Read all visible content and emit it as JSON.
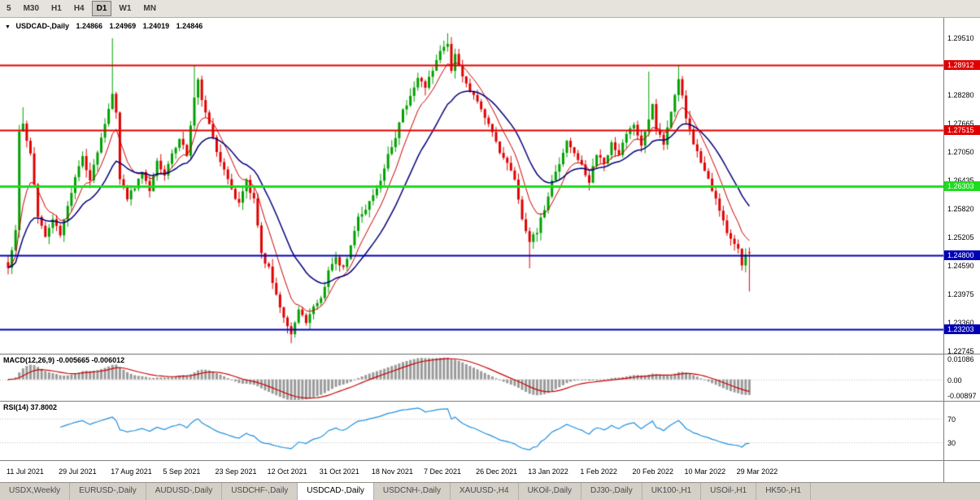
{
  "toolbar": {
    "timeframe_buttons": [
      {
        "label": "5",
        "active": false
      },
      {
        "label": "M30",
        "active": false
      },
      {
        "label": "H1",
        "active": false
      },
      {
        "label": "H4",
        "active": false
      },
      {
        "label": "D1",
        "active": true
      },
      {
        "label": "W1",
        "active": false
      },
      {
        "label": "MN",
        "active": false
      }
    ]
  },
  "icons": {
    "collapse": "▼"
  },
  "chart": {
    "symbol_title": "USDCAD-,Daily",
    "ohlc": {
      "open": "1.24866",
      "high": "1.24969",
      "low": "1.24019",
      "close": "1.24846"
    },
    "price_axis": {
      "top_price": 1.2951,
      "step": 0.00615,
      "labels": [
        "1.29510",
        "1.28280",
        "1.27665",
        "1.27050",
        "1.26435",
        "1.25820",
        "1.25205",
        "1.24590",
        "1.23975",
        "1.23360",
        "1.22745"
      ]
    },
    "hlines": [
      {
        "price": 1.28912,
        "label": "1.28912",
        "color": "#e00000",
        "width": 2
      },
      {
        "price": 1.27515,
        "label": "1.27515",
        "color": "#e00000",
        "width": 2
      },
      {
        "price": 1.26303,
        "label": "1.26303",
        "color": "#1edc1e",
        "width": 3
      },
      {
        "price": 1.248,
        "label": "1.24800",
        "color": "#0000b4",
        "width": 2
      },
      {
        "price": 1.23203,
        "label": "1.23203",
        "color": "#0000b4",
        "width": 2
      }
    ],
    "date_axis": [
      "11 Jul 2021",
      "29 Jul 2021",
      "17 Aug 2021",
      "5 Sep 2021",
      "23 Sep 2021",
      "12 Oct 2021",
      "31 Oct 2021",
      "18 Nov 2021",
      "7 Dec 2021",
      "26 Dec 2021",
      "13 Jan 2022",
      "1 Feb 2022",
      "20 Feb 2022",
      "10 Mar 2022",
      "29 Mar 2022"
    ]
  },
  "macd": {
    "label": "MACD(12,26,9) -0.005665 -0.006012",
    "max": 0.01086,
    "min": -0.00897,
    "axis_labels": {
      "top": "0.01086",
      "zero": "0.00",
      "bottom": "-0.00897"
    }
  },
  "rsi": {
    "label": "RSI(14) 37.8002",
    "levels": [
      70,
      30
    ],
    "axis_labels": [
      "70",
      "30"
    ]
  },
  "tabs": [
    {
      "label": "USDX,Weekly",
      "active": false
    },
    {
      "label": "EURUSD-,Daily",
      "active": false
    },
    {
      "label": "AUDUSD-,Daily",
      "active": false
    },
    {
      "label": "USDCHF-,Daily",
      "active": false
    },
    {
      "label": "USDCAD-,Daily",
      "active": true
    },
    {
      "label": "USDCNH-,Daily",
      "active": false
    },
    {
      "label": "XAUUSD-,H4",
      "active": false
    },
    {
      "label": "UKOil-,Daily",
      "active": false
    },
    {
      "label": "DJ30-,Daily",
      "active": false
    },
    {
      "label": "UK100-,H1",
      "active": false
    },
    {
      "label": "USOil-,H1",
      "active": false
    },
    {
      "label": "HK50-,H1",
      "active": false
    }
  ],
  "colors": {
    "bull": "#00a000",
    "bear": "#e00000",
    "ma_fast": "#cc0000",
    "ma_slow": "#00007a",
    "macd_hist": "#9a9a9a",
    "macd_signal": "#cc0000",
    "rsi_line": "#2090e0",
    "grid": "#c0c0c0",
    "separator": "#808080"
  },
  "chart_data": {
    "type": "candlestick",
    "symbol": "USDCAD-",
    "timeframe": "Daily",
    "bars": 200,
    "bars_per_date_label": 14,
    "current_ohlc": {
      "open": 1.24866,
      "high": 1.24969,
      "low": 1.24019,
      "close": 1.24846
    },
    "support_resistance": [
      1.28912,
      1.27515,
      1.26303,
      1.248,
      1.23203
    ],
    "close_anchors": [
      [
        0,
        1.2455
      ],
      [
        2,
        1.253
      ],
      [
        3,
        1.2745
      ],
      [
        4,
        1.2762
      ],
      [
        6,
        1.27
      ],
      [
        8,
        1.256
      ],
      [
        10,
        1.252
      ],
      [
        12,
        1.2556
      ],
      [
        14,
        1.2528
      ],
      [
        16,
        1.2588
      ],
      [
        18,
        1.265
      ],
      [
        20,
        1.2692
      ],
      [
        22,
        1.2645
      ],
      [
        24,
        1.2705
      ],
      [
        26,
        1.2762
      ],
      [
        28,
        1.2825
      ],
      [
        29,
        1.279
      ],
      [
        30,
        1.2645
      ],
      [
        32,
        1.2602
      ],
      [
        34,
        1.2628
      ],
      [
        36,
        1.2662
      ],
      [
        38,
        1.2622
      ],
      [
        40,
        1.268
      ],
      [
        42,
        1.2652
      ],
      [
        44,
        1.2702
      ],
      [
        46,
        1.2732
      ],
      [
        48,
        1.2695
      ],
      [
        50,
        1.2825
      ],
      [
        51,
        1.2858
      ],
      [
        52,
        1.2812
      ],
      [
        54,
        1.2762
      ],
      [
        56,
        1.2702
      ],
      [
        58,
        1.2662
      ],
      [
        60,
        1.2622
      ],
      [
        62,
        1.2592
      ],
      [
        64,
        1.264
      ],
      [
        66,
        1.26
      ],
      [
        68,
        1.2482
      ],
      [
        70,
        1.2452
      ],
      [
        72,
        1.2392
      ],
      [
        74,
        1.2342
      ],
      [
        76,
        1.2312
      ],
      [
        78,
        1.236
      ],
      [
        80,
        1.2332
      ],
      [
        82,
        1.2372
      ],
      [
        84,
        1.2392
      ],
      [
        86,
        1.2442
      ],
      [
        88,
        1.2472
      ],
      [
        90,
        1.2452
      ],
      [
        92,
        1.2502
      ],
      [
        94,
        1.2562
      ],
      [
        96,
        1.2582
      ],
      [
        98,
        1.2612
      ],
      [
        100,
        1.2642
      ],
      [
        102,
        1.2702
      ],
      [
        104,
        1.2732
      ],
      [
        106,
        1.2792
      ],
      [
        108,
        1.2822
      ],
      [
        110,
        1.2862
      ],
      [
        112,
        1.2842
      ],
      [
        114,
        1.2882
      ],
      [
        116,
        1.2922
      ],
      [
        118,
        1.2932
      ],
      [
        119,
        1.2882
      ],
      [
        120,
        1.2912
      ],
      [
        122,
        1.2862
      ],
      [
        124,
        1.2832
      ],
      [
        126,
        1.2812
      ],
      [
        128,
        1.2782
      ],
      [
        130,
        1.2742
      ],
      [
        132,
        1.2702
      ],
      [
        134,
        1.2682
      ],
      [
        136,
        1.2642
      ],
      [
        138,
        1.2562
      ],
      [
        140,
        1.2512
      ],
      [
        142,
        1.2532
      ],
      [
        144,
        1.2582
      ],
      [
        146,
        1.2642
      ],
      [
        148,
        1.2682
      ],
      [
        150,
        1.2722
      ],
      [
        152,
        1.2702
      ],
      [
        154,
        1.2672
      ],
      [
        156,
        1.2642
      ],
      [
        158,
        1.2702
      ],
      [
        160,
        1.2682
      ],
      [
        162,
        1.2722
      ],
      [
        164,
        1.2702
      ],
      [
        166,
        1.2742
      ],
      [
        168,
        1.2762
      ],
      [
        170,
        1.2722
      ],
      [
        172,
        1.2772
      ],
      [
        173,
        1.2812
      ],
      [
        174,
        1.2752
      ],
      [
        176,
        1.2722
      ],
      [
        178,
        1.2792
      ],
      [
        180,
        1.2862
      ],
      [
        181,
        1.2822
      ],
      [
        182,
        1.2772
      ],
      [
        184,
        1.2722
      ],
      [
        186,
        1.2682
      ],
      [
        188,
        1.2642
      ],
      [
        190,
        1.2602
      ],
      [
        192,
        1.2552
      ],
      [
        194,
        1.2512
      ],
      [
        196,
        1.2492
      ],
      [
        197,
        1.2462
      ],
      [
        198,
        1.2487
      ],
      [
        199,
        1.24846
      ]
    ],
    "spikes": [
      {
        "i": 4,
        "high": 1.28
      },
      {
        "i": 28,
        "high": 1.2949
      },
      {
        "i": 50,
        "high": 1.289
      },
      {
        "i": 76,
        "low": 1.229
      },
      {
        "i": 118,
        "high": 1.296
      },
      {
        "i": 140,
        "low": 1.2452
      },
      {
        "i": 172,
        "high": 1.2877
      },
      {
        "i": 180,
        "high": 1.289
      },
      {
        "i": 199,
        "open": 1.24866,
        "high": 1.24969,
        "low": 1.24019,
        "close": 1.24846
      }
    ],
    "indicators": {
      "ma_fast_period": 8,
      "ma_slow_period": 20,
      "macd_params": [
        12,
        26,
        9
      ],
      "macd_current": [
        -0.005665,
        -0.006012
      ],
      "rsi_period": 14,
      "rsi_current": 37.8002
    }
  }
}
